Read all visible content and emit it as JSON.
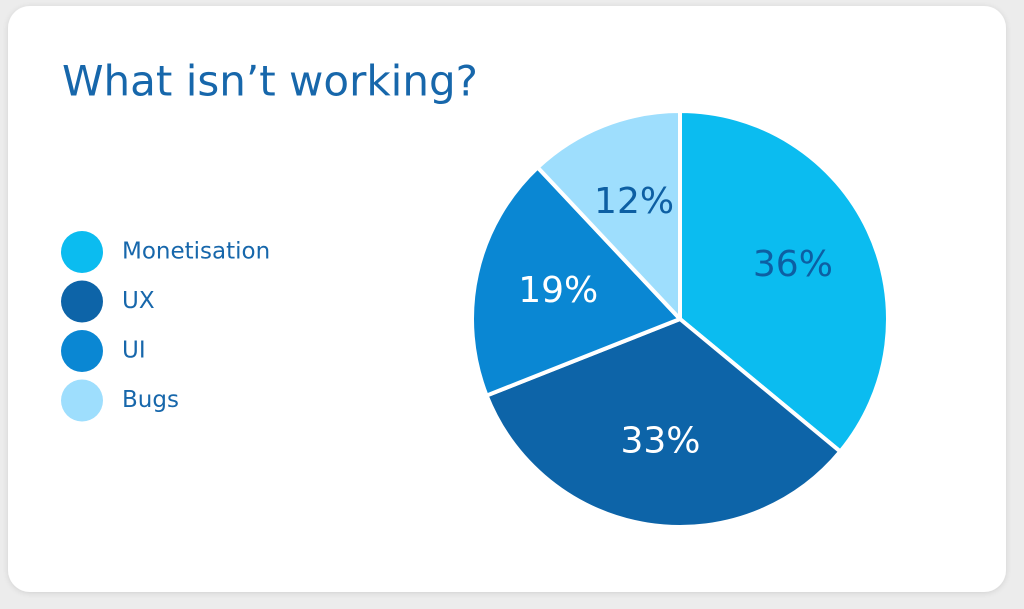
{
  "chart_data": {
    "type": "pie",
    "title": "What isn’t working?",
    "categories": [
      "Monetisation",
      "UX",
      "UI",
      "Bugs"
    ],
    "values": [
      36,
      33,
      19,
      12
    ],
    "value_labels": [
      "36%",
      "33%",
      "19%",
      "12%"
    ],
    "colors": [
      "#0bbcf0",
      "#0d64a8",
      "#0a87d3",
      "#9edefd"
    ],
    "legend": "left"
  }
}
